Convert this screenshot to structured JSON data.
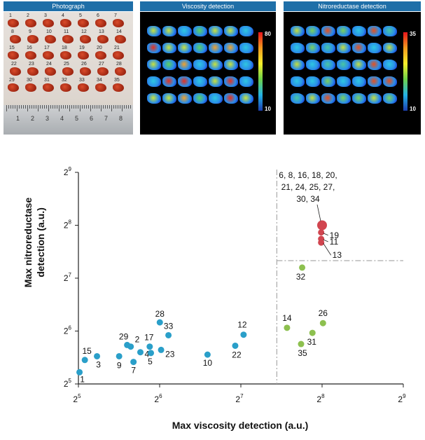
{
  "panels": [
    {
      "title": "Photograph"
    },
    {
      "title": "Viscosity detection",
      "colorbar": {
        "max": "80",
        "min": "10"
      }
    },
    {
      "title": "Nitroreductase detection",
      "colorbar": {
        "max": "35",
        "min": "10"
      }
    }
  ],
  "photo": {
    "sample_numbers": [
      "1",
      "2",
      "3",
      "4",
      "5",
      "6",
      "7",
      "8",
      "9",
      "10",
      "11",
      "12",
      "13",
      "14",
      "15",
      "16",
      "17",
      "18",
      "19",
      "20",
      "21",
      "22",
      "23",
      "24",
      "25",
      "26",
      "27",
      "28",
      "29",
      "30",
      "31",
      "32",
      "33",
      "34",
      "35"
    ],
    "ruler_numbers": [
      "1",
      "2",
      "3",
      "4",
      "5",
      "6",
      "7",
      "8"
    ]
  },
  "chart_data": {
    "type": "scatter",
    "xlabel": "Max viscosity detection (a.u.)",
    "ylabel": "Max nitroreductase detection (a.u.)",
    "x_scale": "log2",
    "y_scale": "log2",
    "xlim": [
      32,
      512
    ],
    "ylim": [
      32,
      512
    ],
    "x_ticks": [
      {
        "base": "2",
        "exp": "5"
      },
      {
        "base": "2",
        "exp": "6"
      },
      {
        "base": "2",
        "exp": "7"
      },
      {
        "base": "2",
        "exp": "8"
      },
      {
        "base": "2",
        "exp": "9"
      }
    ],
    "y_ticks": [
      {
        "base": "2",
        "exp": "5"
      },
      {
        "base": "2",
        "exp": "6"
      },
      {
        "base": "2",
        "exp": "7"
      },
      {
        "base": "2",
        "exp": "8"
      },
      {
        "base": "2",
        "exp": "9"
      }
    ],
    "threshold_x": 174,
    "threshold_y": 161,
    "colors": {
      "blue": "#2a9fc9",
      "green": "#8dc04f",
      "red": "#d1454f",
      "threshold": "#aaaaaa"
    },
    "points": [
      {
        "label": "1",
        "x": 32.3,
        "y": 37.3,
        "group": "blue"
      },
      {
        "label": "15",
        "x": 33.8,
        "y": 43.8,
        "group": "blue"
      },
      {
        "label": "3",
        "x": 37.5,
        "y": 46.0,
        "group": "blue"
      },
      {
        "label": "9",
        "x": 45.3,
        "y": 46.0,
        "group": "blue"
      },
      {
        "label": "29",
        "x": 48.5,
        "y": 53.3,
        "group": "blue"
      },
      {
        "label": "2",
        "x": 50.0,
        "y": 52.2,
        "group": "blue"
      },
      {
        "label": "7",
        "x": 51.2,
        "y": 42.7,
        "group": "blue"
      },
      {
        "label": "4",
        "x": 54.3,
        "y": 48.5,
        "group": "blue"
      },
      {
        "label": "17",
        "x": 58.8,
        "y": 52.2,
        "group": "blue"
      },
      {
        "label": "5",
        "x": 59.4,
        "y": 48.0,
        "group": "blue"
      },
      {
        "label": "28",
        "x": 64.1,
        "y": 71.7,
        "group": "blue"
      },
      {
        "label": "23",
        "x": 64.8,
        "y": 50.0,
        "group": "blue"
      },
      {
        "label": "33",
        "x": 69.0,
        "y": 60.6,
        "group": "blue"
      },
      {
        "label": "10",
        "x": 96.3,
        "y": 47.0,
        "group": "blue"
      },
      {
        "label": "22",
        "x": 122.0,
        "y": 52.8,
        "group": "blue"
      },
      {
        "label": "12",
        "x": 131.0,
        "y": 61.0,
        "group": "blue"
      },
      {
        "label": "14",
        "x": 189.8,
        "y": 66.8,
        "group": "green"
      },
      {
        "label": "32",
        "x": 216.0,
        "y": 147.0,
        "group": "green"
      },
      {
        "label": "35",
        "x": 214.0,
        "y": 54.0,
        "group": "green"
      },
      {
        "label": "31",
        "x": 235.8,
        "y": 62.5,
        "group": "green"
      },
      {
        "label": "26",
        "x": 258.0,
        "y": 71.0,
        "group": "green"
      },
      {
        "label": "6, 8, 16, 18, 20, 21, 24, 25, 27, 30, 34",
        "x": 256.0,
        "y": 256.0,
        "group": "red",
        "cluster": true
      },
      {
        "label": "19",
        "x": 254.0,
        "y": 233.0,
        "group": "red"
      },
      {
        "label": "11",
        "x": 254.0,
        "y": 214.0,
        "group": "red"
      },
      {
        "label": "13",
        "x": 254.0,
        "y": 204.0,
        "group": "red"
      }
    ]
  }
}
